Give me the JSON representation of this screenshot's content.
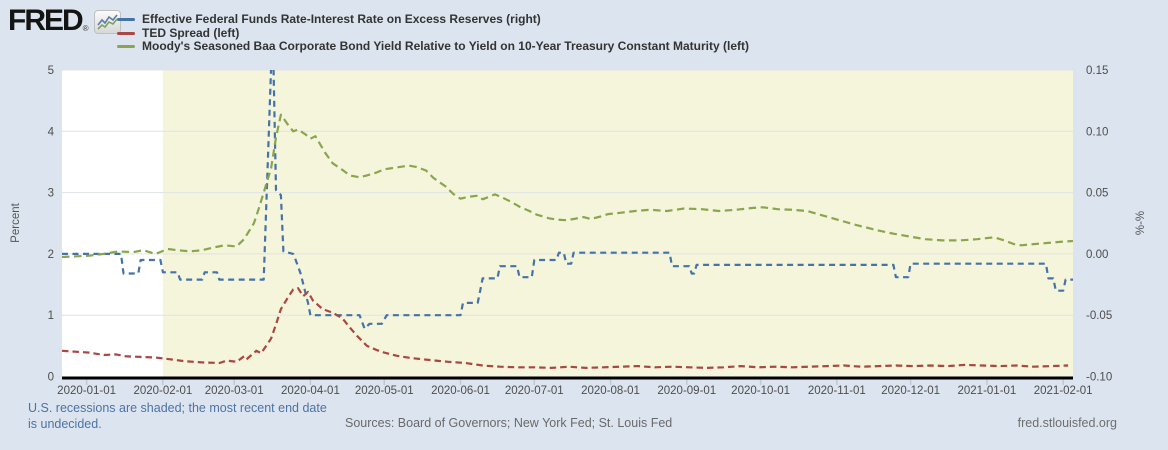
{
  "logo": {
    "text": "FRED",
    "registered": "®"
  },
  "legend": {
    "items": [
      {
        "label": "Effective Federal Funds Rate-Interest Rate on Excess Reserves (right)",
        "color": "#4572a7"
      },
      {
        "label": "TED Spread (left)",
        "color": "#aa4643"
      },
      {
        "label": "Moody's Seasoned Baa Corporate Bond Yield Relative to Yield on 10-Year Treasury Constant Maturity (left)",
        "color": "#89a54e"
      }
    ]
  },
  "chart_data": {
    "type": "line",
    "title": "",
    "legend_position": "top-left",
    "grid": true,
    "x_axis": {
      "domain": [
        "2019-12-22",
        "2021-02-05"
      ],
      "tick_labels": [
        "2020-01-01",
        "2020-02-01",
        "2020-03-01",
        "2020-04-01",
        "2020-05-01",
        "2020-06-01",
        "2020-07-01",
        "2020-08-01",
        "2020-09-01",
        "2020-10-01",
        "2020-11-01",
        "2020-12-01",
        "2021-01-01",
        "2021-02-01"
      ]
    },
    "y_axis_left": {
      "title": "Percent",
      "range": [
        0,
        5
      ],
      "tick_labels": [
        "0",
        "1",
        "2",
        "3",
        "4",
        "5"
      ],
      "tick_values": [
        0,
        1,
        2,
        3,
        4,
        5
      ]
    },
    "y_axis_right": {
      "title": "%-%",
      "range": [
        -0.1,
        0.15
      ],
      "tick_labels": [
        "-0.10",
        "-0.05",
        "0.00",
        "0.05",
        "0.10",
        "0.15"
      ],
      "tick_values": [
        -0.1,
        -0.05,
        0.0,
        0.05,
        0.1,
        0.15
      ]
    },
    "shading": {
      "meaning": "U.S. recession (end date undecided)",
      "start": "2020-02-01",
      "end": "2021-02-05",
      "color": "#f5f5dc"
    },
    "plot_background": "#ffffff",
    "series": [
      {
        "name": "Effective Federal Funds Rate-Interest Rate on Excess Reserves (right)",
        "axis": "right",
        "color": "#4572a7",
        "style": "dashed",
        "data": [
          [
            "2019-12-22",
            0.0
          ],
          [
            "2020-01-15",
            0.0
          ],
          [
            "2020-01-16",
            -0.016
          ],
          [
            "2020-01-22",
            -0.016
          ],
          [
            "2020-01-23",
            -0.005
          ],
          [
            "2020-01-31",
            -0.005
          ],
          [
            "2020-02-01",
            -0.015
          ],
          [
            "2020-02-07",
            -0.015
          ],
          [
            "2020-02-08",
            -0.021
          ],
          [
            "2020-02-17",
            -0.021
          ],
          [
            "2020-02-18",
            -0.015
          ],
          [
            "2020-02-23",
            -0.015
          ],
          [
            "2020-02-24",
            -0.021
          ],
          [
            "2020-03-13",
            -0.021
          ],
          [
            "2020-03-16",
            0.152
          ],
          [
            "2020-03-17",
            0.152
          ],
          [
            "2020-03-18",
            0.052
          ],
          [
            "2020-03-20",
            0.048
          ],
          [
            "2020-03-21",
            0.002
          ],
          [
            "2020-03-25",
            0.0
          ],
          [
            "2020-03-26",
            -0.005
          ],
          [
            "2020-03-28",
            -0.016
          ],
          [
            "2020-03-31",
            -0.04
          ],
          [
            "2020-04-01",
            -0.05
          ],
          [
            "2020-04-21",
            -0.05
          ],
          [
            "2020-04-23",
            -0.061
          ],
          [
            "2020-04-25",
            -0.057
          ],
          [
            "2020-04-30",
            -0.057
          ],
          [
            "2020-05-02",
            -0.05
          ],
          [
            "2020-06-01",
            -0.05
          ],
          [
            "2020-06-02",
            -0.04
          ],
          [
            "2020-06-08",
            -0.04
          ],
          [
            "2020-06-09",
            -0.03
          ],
          [
            "2020-06-10",
            -0.02
          ],
          [
            "2020-06-16",
            -0.02
          ],
          [
            "2020-06-17",
            -0.01
          ],
          [
            "2020-06-24",
            -0.01
          ],
          [
            "2020-06-25",
            -0.019
          ],
          [
            "2020-06-30",
            -0.019
          ],
          [
            "2020-07-01",
            -0.005
          ],
          [
            "2020-07-10",
            -0.005
          ],
          [
            "2020-07-11",
            0.001
          ],
          [
            "2020-07-13",
            0.001
          ],
          [
            "2020-07-14",
            -0.008
          ],
          [
            "2020-07-16",
            -0.008
          ],
          [
            "2020-07-17",
            0.001
          ],
          [
            "2020-08-25",
            0.001
          ],
          [
            "2020-08-26",
            -0.01
          ],
          [
            "2020-09-02",
            -0.01
          ],
          [
            "2020-09-03",
            -0.016
          ],
          [
            "2020-09-04",
            -0.016
          ],
          [
            "2020-09-05",
            -0.009
          ],
          [
            "2020-11-24",
            -0.009
          ],
          [
            "2020-11-25",
            -0.019
          ],
          [
            "2020-11-30",
            -0.019
          ],
          [
            "2020-12-01",
            -0.008
          ],
          [
            "2021-01-25",
            -0.008
          ],
          [
            "2021-01-26",
            -0.02
          ],
          [
            "2021-01-28",
            -0.02
          ],
          [
            "2021-01-29",
            -0.03
          ],
          [
            "2021-02-01",
            -0.03
          ],
          [
            "2021-02-02",
            -0.021
          ],
          [
            "2021-02-05",
            -0.021
          ]
        ]
      },
      {
        "name": "TED Spread (left)",
        "axis": "left",
        "color": "#aa4643",
        "style": "dashed",
        "data": [
          [
            "2019-12-22",
            0.42
          ],
          [
            "2020-01-02",
            0.39
          ],
          [
            "2020-01-08",
            0.35
          ],
          [
            "2020-01-13",
            0.36
          ],
          [
            "2020-01-17",
            0.33
          ],
          [
            "2020-01-23",
            0.32
          ],
          [
            "2020-01-29",
            0.31
          ],
          [
            "2020-02-04",
            0.28
          ],
          [
            "2020-02-10",
            0.25
          ],
          [
            "2020-02-17",
            0.23
          ],
          [
            "2020-02-24",
            0.22
          ],
          [
            "2020-02-27",
            0.26
          ],
          [
            "2020-03-02",
            0.24
          ],
          [
            "2020-03-05",
            0.33
          ],
          [
            "2020-03-06",
            0.28
          ],
          [
            "2020-03-10",
            0.42
          ],
          [
            "2020-03-12",
            0.38
          ],
          [
            "2020-03-16",
            0.62
          ],
          [
            "2020-03-18",
            0.85
          ],
          [
            "2020-03-20",
            1.1
          ],
          [
            "2020-03-23",
            1.3
          ],
          [
            "2020-03-25",
            1.42
          ],
          [
            "2020-03-27",
            1.44
          ],
          [
            "2020-03-29",
            1.31
          ],
          [
            "2020-03-31",
            1.38
          ],
          [
            "2020-04-02",
            1.24
          ],
          [
            "2020-04-06",
            1.1
          ],
          [
            "2020-04-10",
            1.04
          ],
          [
            "2020-04-14",
            0.95
          ],
          [
            "2020-04-17",
            0.8
          ],
          [
            "2020-04-20",
            0.66
          ],
          [
            "2020-04-24",
            0.5
          ],
          [
            "2020-04-28",
            0.43
          ],
          [
            "2020-05-01",
            0.39
          ],
          [
            "2020-05-06",
            0.34
          ],
          [
            "2020-05-12",
            0.3
          ],
          [
            "2020-05-19",
            0.27
          ],
          [
            "2020-05-27",
            0.24
          ],
          [
            "2020-06-03",
            0.22
          ],
          [
            "2020-06-10",
            0.18
          ],
          [
            "2020-06-17",
            0.16
          ],
          [
            "2020-06-24",
            0.15
          ],
          [
            "2020-07-01",
            0.15
          ],
          [
            "2020-07-08",
            0.14
          ],
          [
            "2020-07-15",
            0.16
          ],
          [
            "2020-07-22",
            0.14
          ],
          [
            "2020-07-29",
            0.15
          ],
          [
            "2020-08-05",
            0.16
          ],
          [
            "2020-08-12",
            0.17
          ],
          [
            "2020-08-19",
            0.15
          ],
          [
            "2020-08-26",
            0.16
          ],
          [
            "2020-09-02",
            0.15
          ],
          [
            "2020-09-09",
            0.14
          ],
          [
            "2020-09-16",
            0.15
          ],
          [
            "2020-09-23",
            0.17
          ],
          [
            "2020-09-30",
            0.15
          ],
          [
            "2020-10-07",
            0.16
          ],
          [
            "2020-10-14",
            0.15
          ],
          [
            "2020-10-21",
            0.16
          ],
          [
            "2020-10-28",
            0.17
          ],
          [
            "2020-11-04",
            0.18
          ],
          [
            "2020-11-11",
            0.16
          ],
          [
            "2020-11-18",
            0.17
          ],
          [
            "2020-11-25",
            0.18
          ],
          [
            "2020-12-02",
            0.17
          ],
          [
            "2020-12-09",
            0.18
          ],
          [
            "2020-12-16",
            0.17
          ],
          [
            "2020-12-23",
            0.19
          ],
          [
            "2020-12-30",
            0.18
          ],
          [
            "2021-01-06",
            0.17
          ],
          [
            "2021-01-13",
            0.18
          ],
          [
            "2021-01-20",
            0.16
          ],
          [
            "2021-01-27",
            0.17
          ],
          [
            "2021-02-03",
            0.18
          ]
        ]
      },
      {
        "name": "Moody's Seasoned Baa Corporate Bond Yield Relative to Yield on 10-Year Treasury Constant Maturity (left)",
        "axis": "left",
        "color": "#89a54e",
        "style": "dashed",
        "data": [
          [
            "2019-12-22",
            1.95
          ],
          [
            "2020-01-02",
            1.97
          ],
          [
            "2020-01-08",
            2.0
          ],
          [
            "2020-01-14",
            2.04
          ],
          [
            "2020-01-20",
            2.03
          ],
          [
            "2020-01-24",
            2.06
          ],
          [
            "2020-01-29",
            2.0
          ],
          [
            "2020-02-03",
            2.08
          ],
          [
            "2020-02-07",
            2.06
          ],
          [
            "2020-02-12",
            2.04
          ],
          [
            "2020-02-17",
            2.06
          ],
          [
            "2020-02-21",
            2.1
          ],
          [
            "2020-02-26",
            2.14
          ],
          [
            "2020-03-02",
            2.12
          ],
          [
            "2020-03-05",
            2.24
          ],
          [
            "2020-03-09",
            2.5
          ],
          [
            "2020-03-11",
            2.74
          ],
          [
            "2020-03-13",
            3.0
          ],
          [
            "2020-03-16",
            3.4
          ],
          [
            "2020-03-18",
            3.9
          ],
          [
            "2020-03-20",
            4.27
          ],
          [
            "2020-03-23",
            4.1
          ],
          [
            "2020-03-25",
            4.0
          ],
          [
            "2020-03-27",
            4.03
          ],
          [
            "2020-03-30",
            3.95
          ],
          [
            "2020-04-01",
            3.88
          ],
          [
            "2020-04-03",
            3.92
          ],
          [
            "2020-04-07",
            3.65
          ],
          [
            "2020-04-10",
            3.48
          ],
          [
            "2020-04-14",
            3.37
          ],
          [
            "2020-04-17",
            3.28
          ],
          [
            "2020-04-21",
            3.25
          ],
          [
            "2020-04-24",
            3.28
          ],
          [
            "2020-04-28",
            3.33
          ],
          [
            "2020-05-01",
            3.38
          ],
          [
            "2020-05-06",
            3.41
          ],
          [
            "2020-05-11",
            3.44
          ],
          [
            "2020-05-14",
            3.42
          ],
          [
            "2020-05-18",
            3.36
          ],
          [
            "2020-05-21",
            3.24
          ],
          [
            "2020-05-26",
            3.1
          ],
          [
            "2020-05-29",
            2.98
          ],
          [
            "2020-06-01",
            2.9
          ],
          [
            "2020-06-04",
            2.93
          ],
          [
            "2020-06-08",
            2.95
          ],
          [
            "2020-06-10",
            2.89
          ],
          [
            "2020-06-15",
            2.97
          ],
          [
            "2020-06-18",
            2.92
          ],
          [
            "2020-06-22",
            2.84
          ],
          [
            "2020-06-25",
            2.77
          ],
          [
            "2020-06-29",
            2.7
          ],
          [
            "2020-07-02",
            2.64
          ],
          [
            "2020-07-07",
            2.58
          ],
          [
            "2020-07-10",
            2.56
          ],
          [
            "2020-07-14",
            2.55
          ],
          [
            "2020-07-17",
            2.57
          ],
          [
            "2020-07-21",
            2.6
          ],
          [
            "2020-07-24",
            2.57
          ],
          [
            "2020-07-28",
            2.61
          ],
          [
            "2020-07-31",
            2.65
          ],
          [
            "2020-08-05",
            2.67
          ],
          [
            "2020-08-11",
            2.7
          ],
          [
            "2020-08-17",
            2.72
          ],
          [
            "2020-08-24",
            2.7
          ],
          [
            "2020-08-31",
            2.74
          ],
          [
            "2020-09-07",
            2.73
          ],
          [
            "2020-09-14",
            2.7
          ],
          [
            "2020-09-21",
            2.72
          ],
          [
            "2020-09-28",
            2.75
          ],
          [
            "2020-10-02",
            2.76
          ],
          [
            "2020-10-08",
            2.73
          ],
          [
            "2020-10-14",
            2.72
          ],
          [
            "2020-10-20",
            2.7
          ],
          [
            "2020-10-26",
            2.63
          ],
          [
            "2020-11-02",
            2.55
          ],
          [
            "2020-11-09",
            2.47
          ],
          [
            "2020-11-13",
            2.43
          ],
          [
            "2020-11-18",
            2.38
          ],
          [
            "2020-11-24",
            2.33
          ],
          [
            "2020-12-01",
            2.28
          ],
          [
            "2020-12-07",
            2.24
          ],
          [
            "2020-12-14",
            2.22
          ],
          [
            "2020-12-21",
            2.22
          ],
          [
            "2020-12-28",
            2.24
          ],
          [
            "2021-01-04",
            2.27
          ],
          [
            "2021-01-08",
            2.22
          ],
          [
            "2021-01-12",
            2.16
          ],
          [
            "2021-01-15",
            2.14
          ],
          [
            "2021-01-20",
            2.16
          ],
          [
            "2021-01-26",
            2.18
          ],
          [
            "2021-02-01",
            2.2
          ],
          [
            "2021-02-05",
            2.21
          ]
        ]
      }
    ]
  },
  "footer": {
    "recession_note": "U.S. recessions are shaded; the most recent end date is undecided.",
    "sources": "Sources: Board of Governors; New York Fed; St. Louis Fed",
    "site": "fred.stlouisfed.org"
  },
  "colors": {
    "background": "#dce5ef",
    "plot_background": "#ffffff",
    "recession_shading": "#f5f5dc",
    "gridline": "#dfe3e6",
    "axis_line": "#000000",
    "month_tick": "#bcc9da",
    "note_blue": "#4d72a5",
    "text_gray": "#696969"
  }
}
